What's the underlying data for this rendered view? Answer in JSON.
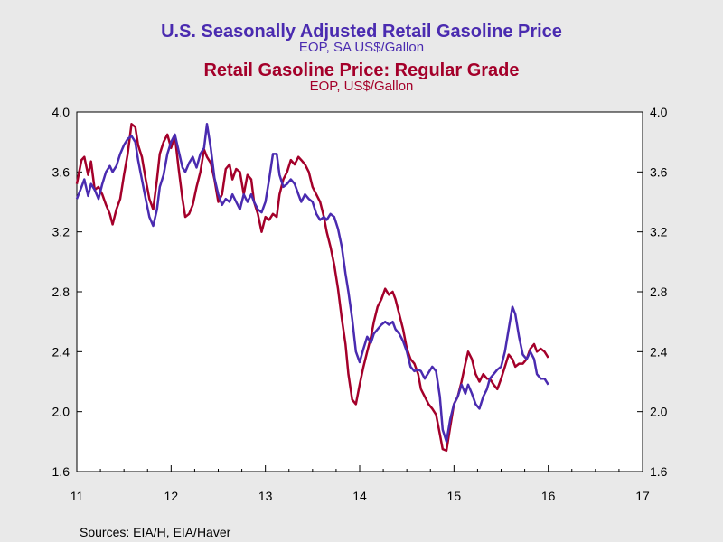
{
  "chart_data": {
    "type": "line",
    "titles": [
      {
        "main": "U.S. Seasonally Adjusted Retail Gasoline Price",
        "sub": "EOP, SA US$/Gallon",
        "color": "#4a2bb0"
      },
      {
        "main": "Retail Gasoline Price: Regular Grade",
        "sub": "EOP, US$/Gallon",
        "color": "#a4002a"
      }
    ],
    "ylim": [
      1.6,
      4.0
    ],
    "y_ticks": [
      "4.0",
      "3.6",
      "3.2",
      "2.8",
      "2.4",
      "2.0",
      "1.6"
    ],
    "x_ticks": [
      "11",
      "12",
      "13",
      "14",
      "15",
      "16",
      "17"
    ],
    "xlim": [
      11,
      17
    ],
    "source": "Sources:  EIA/H, EIA/Haver",
    "grid": false,
    "series": [
      {
        "name": "U.S. Seasonally Adjusted Retail Gasoline Price",
        "color": "#4a2bb0",
        "points": [
          [
            11.0,
            3.42
          ],
          [
            11.05,
            3.5
          ],
          [
            11.08,
            3.55
          ],
          [
            11.12,
            3.44
          ],
          [
            11.15,
            3.52
          ],
          [
            11.19,
            3.48
          ],
          [
            11.23,
            3.42
          ],
          [
            11.27,
            3.52
          ],
          [
            11.31,
            3.6
          ],
          [
            11.35,
            3.64
          ],
          [
            11.38,
            3.6
          ],
          [
            11.42,
            3.64
          ],
          [
            11.46,
            3.72
          ],
          [
            11.5,
            3.78
          ],
          [
            11.54,
            3.82
          ],
          [
            11.58,
            3.84
          ],
          [
            11.62,
            3.8
          ],
          [
            11.65,
            3.68
          ],
          [
            11.69,
            3.55
          ],
          [
            11.73,
            3.42
          ],
          [
            11.77,
            3.3
          ],
          [
            11.81,
            3.24
          ],
          [
            11.85,
            3.35
          ],
          [
            11.88,
            3.5
          ],
          [
            11.92,
            3.58
          ],
          [
            11.96,
            3.72
          ],
          [
            12.0,
            3.8
          ],
          [
            12.04,
            3.85
          ],
          [
            12.08,
            3.74
          ],
          [
            12.12,
            3.63
          ],
          [
            12.15,
            3.6
          ],
          [
            12.19,
            3.66
          ],
          [
            12.23,
            3.7
          ],
          [
            12.27,
            3.63
          ],
          [
            12.31,
            3.72
          ],
          [
            12.35,
            3.76
          ],
          [
            12.38,
            3.92
          ],
          [
            12.42,
            3.76
          ],
          [
            12.46,
            3.56
          ],
          [
            12.5,
            3.45
          ],
          [
            12.54,
            3.38
          ],
          [
            12.58,
            3.42
          ],
          [
            12.62,
            3.4
          ],
          [
            12.65,
            3.45
          ],
          [
            12.69,
            3.4
          ],
          [
            12.73,
            3.35
          ],
          [
            12.77,
            3.45
          ],
          [
            12.81,
            3.4
          ],
          [
            12.85,
            3.45
          ],
          [
            12.88,
            3.4
          ],
          [
            12.92,
            3.35
          ],
          [
            12.96,
            3.33
          ],
          [
            13.0,
            3.4
          ],
          [
            13.04,
            3.55
          ],
          [
            13.08,
            3.72
          ],
          [
            13.12,
            3.72
          ],
          [
            13.15,
            3.58
          ],
          [
            13.19,
            3.5
          ],
          [
            13.23,
            3.52
          ],
          [
            13.27,
            3.55
          ],
          [
            13.31,
            3.52
          ],
          [
            13.35,
            3.45
          ],
          [
            13.38,
            3.4
          ],
          [
            13.42,
            3.45
          ],
          [
            13.46,
            3.42
          ],
          [
            13.5,
            3.4
          ],
          [
            13.54,
            3.32
          ],
          [
            13.58,
            3.28
          ],
          [
            13.62,
            3.3
          ],
          [
            13.65,
            3.28
          ],
          [
            13.69,
            3.32
          ],
          [
            13.73,
            3.3
          ],
          [
            13.77,
            3.22
          ],
          [
            13.81,
            3.1
          ],
          [
            13.85,
            2.92
          ],
          [
            13.88,
            2.8
          ],
          [
            13.92,
            2.62
          ],
          [
            13.96,
            2.4
          ],
          [
            14.0,
            2.33
          ],
          [
            14.04,
            2.42
          ],
          [
            14.08,
            2.5
          ],
          [
            14.12,
            2.46
          ],
          [
            14.15,
            2.52
          ],
          [
            14.19,
            2.55
          ],
          [
            14.23,
            2.58
          ],
          [
            14.27,
            2.6
          ],
          [
            14.31,
            2.58
          ],
          [
            14.35,
            2.6
          ],
          [
            14.38,
            2.55
          ],
          [
            14.42,
            2.52
          ],
          [
            14.46,
            2.47
          ],
          [
            14.5,
            2.4
          ],
          [
            14.54,
            2.3
          ],
          [
            14.58,
            2.27
          ],
          [
            14.62,
            2.28
          ],
          [
            14.65,
            2.27
          ],
          [
            14.69,
            2.22
          ],
          [
            14.73,
            2.26
          ],
          [
            14.77,
            2.3
          ],
          [
            14.81,
            2.27
          ],
          [
            14.85,
            2.1
          ],
          [
            14.88,
            1.88
          ],
          [
            14.92,
            1.8
          ],
          [
            14.96,
            1.95
          ],
          [
            15.0,
            2.05
          ],
          [
            15.04,
            2.1
          ],
          [
            15.08,
            2.18
          ],
          [
            15.12,
            2.12
          ],
          [
            15.15,
            2.18
          ],
          [
            15.19,
            2.12
          ],
          [
            15.23,
            2.05
          ],
          [
            15.27,
            2.02
          ],
          [
            15.31,
            2.1
          ],
          [
            15.35,
            2.15
          ],
          [
            15.38,
            2.22
          ],
          [
            15.42,
            2.25
          ],
          [
            15.46,
            2.28
          ],
          [
            15.5,
            2.3
          ],
          [
            15.54,
            2.4
          ],
          [
            15.58,
            2.55
          ],
          [
            15.62,
            2.7
          ],
          [
            15.65,
            2.65
          ],
          [
            15.69,
            2.5
          ],
          [
            15.73,
            2.38
          ],
          [
            15.77,
            2.35
          ],
          [
            15.81,
            2.4
          ],
          [
            15.85,
            2.35
          ],
          [
            15.88,
            2.25
          ],
          [
            15.92,
            2.22
          ],
          [
            15.96,
            2.22
          ],
          [
            16.0,
            2.18
          ]
        ]
      },
      {
        "name": "Retail Gasoline Price: Regular Grade",
        "color": "#a4002a",
        "points": [
          [
            11.0,
            3.52
          ],
          [
            11.05,
            3.68
          ],
          [
            11.08,
            3.7
          ],
          [
            11.12,
            3.58
          ],
          [
            11.15,
            3.67
          ],
          [
            11.19,
            3.48
          ],
          [
            11.23,
            3.5
          ],
          [
            11.27,
            3.45
          ],
          [
            11.31,
            3.38
          ],
          [
            11.35,
            3.32
          ],
          [
            11.38,
            3.25
          ],
          [
            11.42,
            3.35
          ],
          [
            11.46,
            3.42
          ],
          [
            11.5,
            3.58
          ],
          [
            11.54,
            3.72
          ],
          [
            11.58,
            3.92
          ],
          [
            11.62,
            3.9
          ],
          [
            11.65,
            3.78
          ],
          [
            11.69,
            3.7
          ],
          [
            11.73,
            3.55
          ],
          [
            11.77,
            3.42
          ],
          [
            11.81,
            3.35
          ],
          [
            11.85,
            3.55
          ],
          [
            11.88,
            3.72
          ],
          [
            11.92,
            3.8
          ],
          [
            11.96,
            3.85
          ],
          [
            12.0,
            3.76
          ],
          [
            12.04,
            3.84
          ],
          [
            12.08,
            3.62
          ],
          [
            12.12,
            3.42
          ],
          [
            12.15,
            3.3
          ],
          [
            12.19,
            3.32
          ],
          [
            12.23,
            3.38
          ],
          [
            12.27,
            3.5
          ],
          [
            12.31,
            3.6
          ],
          [
            12.35,
            3.75
          ],
          [
            12.38,
            3.7
          ],
          [
            12.42,
            3.66
          ],
          [
            12.46,
            3.55
          ],
          [
            12.5,
            3.4
          ],
          [
            12.54,
            3.45
          ],
          [
            12.58,
            3.62
          ],
          [
            12.62,
            3.65
          ],
          [
            12.65,
            3.55
          ],
          [
            12.69,
            3.62
          ],
          [
            12.73,
            3.6
          ],
          [
            12.77,
            3.45
          ],
          [
            12.81,
            3.58
          ],
          [
            12.85,
            3.55
          ],
          [
            12.88,
            3.4
          ],
          [
            12.92,
            3.32
          ],
          [
            12.96,
            3.2
          ],
          [
            13.0,
            3.3
          ],
          [
            13.04,
            3.28
          ],
          [
            13.08,
            3.32
          ],
          [
            13.12,
            3.3
          ],
          [
            13.15,
            3.45
          ],
          [
            13.19,
            3.55
          ],
          [
            13.23,
            3.6
          ],
          [
            13.27,
            3.68
          ],
          [
            13.31,
            3.65
          ],
          [
            13.35,
            3.7
          ],
          [
            13.38,
            3.68
          ],
          [
            13.42,
            3.65
          ],
          [
            13.46,
            3.6
          ],
          [
            13.5,
            3.5
          ],
          [
            13.54,
            3.45
          ],
          [
            13.58,
            3.4
          ],
          [
            13.62,
            3.3
          ],
          [
            13.65,
            3.2
          ],
          [
            13.69,
            3.1
          ],
          [
            13.73,
            2.98
          ],
          [
            13.77,
            2.82
          ],
          [
            13.81,
            2.62
          ],
          [
            13.85,
            2.45
          ],
          [
            13.88,
            2.25
          ],
          [
            13.92,
            2.08
          ],
          [
            13.96,
            2.05
          ],
          [
            14.0,
            2.18
          ],
          [
            14.04,
            2.3
          ],
          [
            14.08,
            2.4
          ],
          [
            14.12,
            2.5
          ],
          [
            14.15,
            2.6
          ],
          [
            14.19,
            2.7
          ],
          [
            14.23,
            2.75
          ],
          [
            14.27,
            2.82
          ],
          [
            14.31,
            2.78
          ],
          [
            14.35,
            2.8
          ],
          [
            14.38,
            2.75
          ],
          [
            14.42,
            2.65
          ],
          [
            14.46,
            2.55
          ],
          [
            14.5,
            2.42
          ],
          [
            14.54,
            2.35
          ],
          [
            14.58,
            2.32
          ],
          [
            14.62,
            2.25
          ],
          [
            14.65,
            2.15
          ],
          [
            14.69,
            2.1
          ],
          [
            14.73,
            2.05
          ],
          [
            14.77,
            2.02
          ],
          [
            14.81,
            1.98
          ],
          [
            14.85,
            1.85
          ],
          [
            14.88,
            1.75
          ],
          [
            14.92,
            1.74
          ],
          [
            14.96,
            1.9
          ],
          [
            15.0,
            2.05
          ],
          [
            15.04,
            2.1
          ],
          [
            15.08,
            2.2
          ],
          [
            15.12,
            2.32
          ],
          [
            15.15,
            2.4
          ],
          [
            15.19,
            2.35
          ],
          [
            15.23,
            2.25
          ],
          [
            15.27,
            2.2
          ],
          [
            15.31,
            2.25
          ],
          [
            15.35,
            2.22
          ],
          [
            15.38,
            2.22
          ],
          [
            15.42,
            2.18
          ],
          [
            15.46,
            2.15
          ],
          [
            15.5,
            2.22
          ],
          [
            15.54,
            2.3
          ],
          [
            15.58,
            2.38
          ],
          [
            15.62,
            2.35
          ],
          [
            15.65,
            2.3
          ],
          [
            15.69,
            2.32
          ],
          [
            15.73,
            2.32
          ],
          [
            15.77,
            2.35
          ],
          [
            15.81,
            2.42
          ],
          [
            15.85,
            2.45
          ],
          [
            15.88,
            2.4
          ],
          [
            15.92,
            2.42
          ],
          [
            15.96,
            2.4
          ],
          [
            16.0,
            2.36
          ]
        ]
      }
    ]
  }
}
